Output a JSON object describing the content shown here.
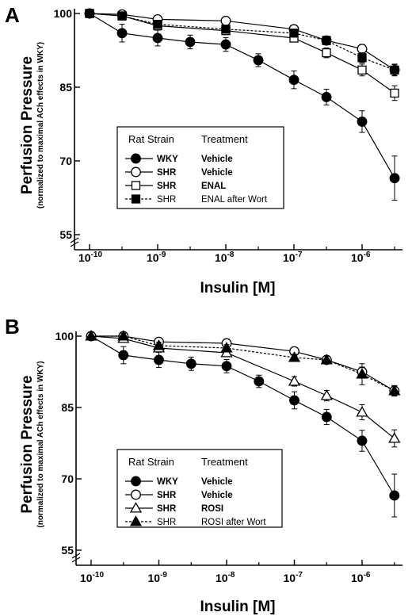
{
  "chart_data": [
    {
      "panel": "A",
      "type": "line",
      "xscale": "log",
      "xlim": [
        1e-10,
        4e-06
      ],
      "ylim": [
        55,
        100
      ],
      "xlabel": "Insulin [M]",
      "ylabel": "Perfusion Pressure",
      "ylabel_sub": "(normalized to maximal ACh effects in WKY)",
      "yticks": [
        55,
        70,
        85,
        100
      ],
      "xticks": [
        {
          "value": 1e-10,
          "base": "10",
          "exp": "-10"
        },
        {
          "value": 1e-09,
          "base": "10",
          "exp": "-9"
        },
        {
          "value": 1e-08,
          "base": "10",
          "exp": "-8"
        },
        {
          "value": 1e-07,
          "base": "10",
          "exp": "-7"
        },
        {
          "value": 1e-06,
          "base": "10",
          "exp": "-6"
        }
      ],
      "x": [
        1e-10,
        3e-10,
        1e-09,
        3e-09,
        1e-08,
        3e-08,
        1e-07,
        3e-07,
        1e-06,
        3e-06
      ],
      "legend": {
        "head_strain": "Rat Strain",
        "head_treatment": "Treatment"
      },
      "series": [
        {
          "strain": "WKY",
          "treatment": "Vehicle",
          "bold": true,
          "marker": "circle",
          "fill": "#000000",
          "dash": false,
          "values": [
            100,
            96,
            95,
            94.2,
            93.7,
            90.5,
            86.5,
            83,
            78,
            66.5
          ],
          "errors": [
            0,
            1.8,
            1.6,
            1.4,
            1.4,
            1.3,
            1.8,
            1.6,
            2.2,
            4.5
          ]
        },
        {
          "strain": "SHR",
          "treatment": "Vehicle",
          "bold": true,
          "marker": "circle",
          "fill": "#ffffff",
          "dash": false,
          "values": [
            100,
            99.8,
            98.8,
            null,
            98.5,
            null,
            96.8,
            94.5,
            92.8,
            88.5
          ],
          "errors": [
            0,
            0.6,
            0.6,
            0,
            0.6,
            0,
            0.6,
            0.8,
            0.9,
            1.1
          ]
        },
        {
          "strain": "SHR",
          "treatment": "ENAL",
          "bold": true,
          "marker": "square",
          "fill": "#ffffff",
          "dash": false,
          "values": [
            100,
            99.5,
            97.5,
            null,
            96.5,
            null,
            95,
            92,
            88.5,
            83.8
          ],
          "errors": [
            0,
            0.6,
            0.7,
            0,
            0.7,
            0,
            0.8,
            1,
            1.2,
            1.5
          ]
        },
        {
          "strain": "SHR",
          "treatment": "ENAL after Wort",
          "bold": false,
          "marker": "square",
          "fill": "#000000",
          "dash": true,
          "values": [
            100,
            99.5,
            97.8,
            null,
            96.8,
            null,
            96,
            94.5,
            91,
            88.5
          ],
          "errors": [
            0,
            0.6,
            0.7,
            0,
            0.7,
            0,
            0.7,
            0.9,
            1,
            1.2
          ]
        }
      ]
    },
    {
      "panel": "B",
      "type": "line",
      "xscale": "log",
      "xlim": [
        1e-10,
        4e-06
      ],
      "ylim": [
        55,
        100
      ],
      "xlabel": "Insulin [M]",
      "ylabel": "Perfusion Pressure",
      "ylabel_sub": "(normalized to maximal ACh effects in WKY)",
      "yticks": [
        55,
        70,
        85,
        100
      ],
      "xticks": [
        {
          "value": 1e-10,
          "base": "10",
          "exp": "-10"
        },
        {
          "value": 1e-09,
          "base": "10",
          "exp": "-9"
        },
        {
          "value": 1e-08,
          "base": "10",
          "exp": "-8"
        },
        {
          "value": 1e-07,
          "base": "10",
          "exp": "-7"
        },
        {
          "value": 1e-06,
          "base": "10",
          "exp": "-6"
        }
      ],
      "x": [
        1e-10,
        3e-10,
        1e-09,
        3e-09,
        1e-08,
        3e-08,
        1e-07,
        3e-07,
        1e-06,
        3e-06
      ],
      "legend": {
        "head_strain": "Rat Strain",
        "head_treatment": "Treatment"
      },
      "series": [
        {
          "strain": "WKY",
          "treatment": "Vehicle",
          "bold": true,
          "marker": "circle",
          "fill": "#000000",
          "dash": false,
          "values": [
            100,
            96,
            95,
            94.2,
            93.7,
            90.5,
            86.5,
            83,
            78,
            66.5
          ],
          "errors": [
            0,
            1.8,
            1.6,
            1.4,
            1.4,
            1.3,
            1.8,
            1.6,
            2.2,
            4.5
          ]
        },
        {
          "strain": "SHR",
          "treatment": "Vehicle",
          "bold": true,
          "marker": "circle",
          "fill": "#ffffff",
          "dash": false,
          "values": [
            100,
            100,
            98.8,
            null,
            98.5,
            null,
            96.8,
            95,
            92.5,
            88.5
          ],
          "errors": [
            0,
            0.6,
            0.6,
            0,
            0.6,
            0,
            0.6,
            0.8,
            1,
            1.1
          ]
        },
        {
          "strain": "SHR",
          "treatment": "ROSI",
          "bold": true,
          "marker": "triangle",
          "fill": "#ffffff",
          "dash": false,
          "values": [
            100,
            99.5,
            97.5,
            null,
            96.5,
            null,
            90.5,
            87.5,
            84,
            78.5
          ],
          "errors": [
            0,
            0.7,
            0.8,
            0,
            0.8,
            0,
            1,
            1.1,
            1.6,
            1.8
          ]
        },
        {
          "strain": "SHR",
          "treatment": "ROSI after Wort",
          "bold": false,
          "marker": "triangle",
          "fill": "#000000",
          "dash": true,
          "values": [
            100,
            100,
            98,
            null,
            97.5,
            null,
            95.5,
            95,
            92,
            88.5
          ],
          "errors": [
            0,
            0.6,
            0.7,
            0,
            0.7,
            0,
            0.7,
            0.8,
            2.2,
            1
          ]
        }
      ]
    }
  ]
}
